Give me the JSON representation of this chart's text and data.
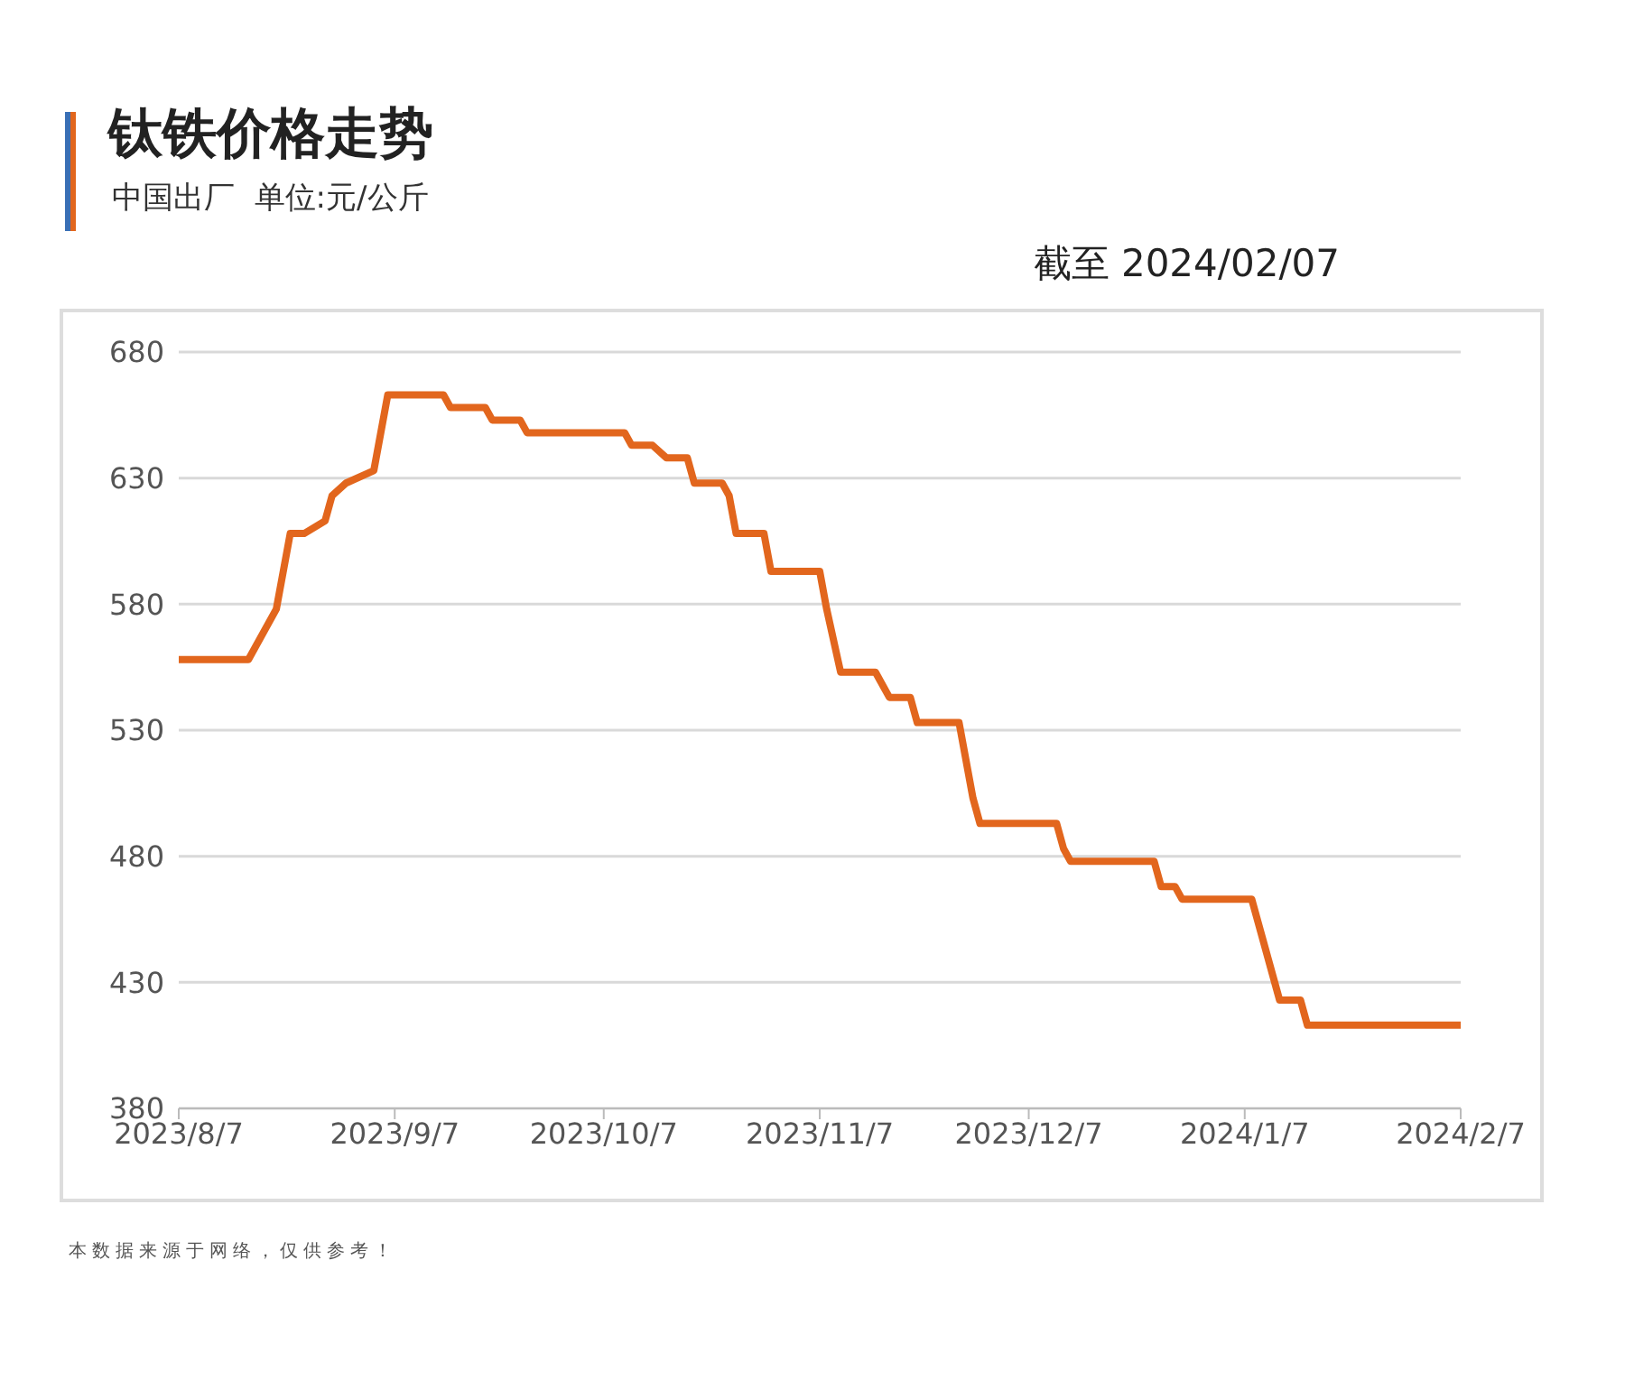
{
  "chart_data": {
    "type": "line",
    "title": "钛铁价格走势",
    "subtitle": "中国出厂  单位:元/公斤",
    "annotations": [
      "截至 2024/02/07",
      "本数据来源于网络，仅供参考！"
    ],
    "x": [
      "2023-08-07",
      "2023-08-17",
      "2023-08-21",
      "2023-08-23",
      "2023-08-25",
      "2023-08-28",
      "2023-08-29",
      "2023-08-31",
      "2023-09-04",
      "2023-09-06",
      "2023-09-14",
      "2023-09-15",
      "2023-09-20",
      "2023-09-21",
      "2023-09-25",
      "2023-09-26",
      "2023-10-10",
      "2023-10-11",
      "2023-10-14",
      "2023-10-16",
      "2023-10-19",
      "2023-10-20",
      "2023-10-24",
      "2023-10-25",
      "2023-10-26",
      "2023-10-30",
      "2023-10-31",
      "2023-11-07",
      "2023-11-08",
      "2023-11-10",
      "2023-11-15",
      "2023-11-17",
      "2023-11-20",
      "2023-11-21",
      "2023-11-27",
      "2023-11-29",
      "2023-11-30",
      "2023-12-11",
      "2023-12-12",
      "2023-12-13",
      "2023-12-25",
      "2023-12-26",
      "2023-12-28",
      "2023-12-29",
      "2024-01-08",
      "2024-01-12",
      "2024-01-15",
      "2024-01-16",
      "2024-02-07"
    ],
    "series": [
      {
        "color": "#e2661d",
        "values": [
          558,
          558,
          578,
          608,
          608,
          613,
          623,
          628,
          633,
          663,
          663,
          658,
          658,
          653,
          653,
          648,
          648,
          643,
          643,
          638,
          638,
          628,
          628,
          623,
          608,
          608,
          593,
          593,
          578,
          553,
          553,
          543,
          543,
          533,
          533,
          503,
          493,
          493,
          483,
          478,
          478,
          468,
          468,
          463,
          463,
          423,
          423,
          413,
          413
        ]
      }
    ],
    "xlim": [
      "2023-08-07",
      "2024-02-07"
    ],
    "xticks": [
      {
        "value": "2023-08-07",
        "label": "2023/8/7"
      },
      {
        "value": "2023-09-07",
        "label": "2023/9/7"
      },
      {
        "value": "2023-10-07",
        "label": "2023/10/7"
      },
      {
        "value": "2023-11-07",
        "label": "2023/11/7"
      },
      {
        "value": "2023-12-07",
        "label": "2023/12/7"
      },
      {
        "value": "2024-01-07",
        "label": "2024/1/7"
      },
      {
        "value": "2024-02-07",
        "label": "2024/2/7"
      }
    ],
    "ylim": [
      380,
      680
    ],
    "yticks": [
      380,
      430,
      480,
      530,
      580,
      630,
      680
    ],
    "grid": "y",
    "legend": false,
    "marker": "none",
    "line_style": "solid"
  }
}
